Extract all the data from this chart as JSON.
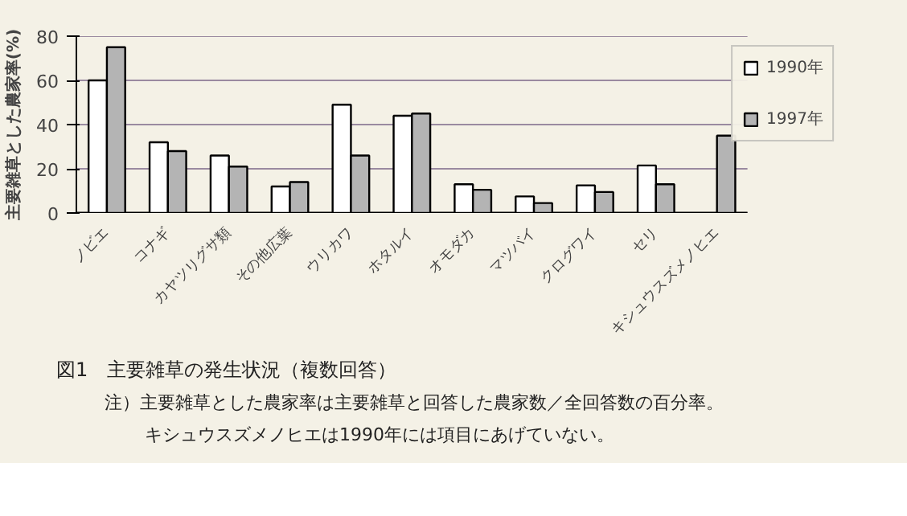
{
  "chart_data": {
    "type": "bar",
    "title": "図1　主要雑草の発生状況（複数回答）",
    "ylabel": "主要雑草とした農家率(%)",
    "categories": [
      "ノビエ",
      "コナギ",
      "カヤツリグサ類",
      "その他広葉",
      "ウリカワ",
      "ホタルイ",
      "オモダカ",
      "マツバイ",
      "クログワイ",
      "セリ",
      "キシュウスズメノヒエ"
    ],
    "series": [
      {
        "name": "1990年",
        "color": "#ffffff",
        "values": [
          60,
          32,
          26,
          12,
          49,
          44,
          13,
          7.5,
          12.5,
          21.5,
          null
        ]
      },
      {
        "name": "1997年",
        "color": "#b4b4b4",
        "values": [
          75,
          28,
          21,
          14,
          26,
          45,
          10.5,
          4.5,
          9.5,
          13,
          35
        ]
      }
    ],
    "ylim": [
      0,
      80
    ],
    "yticks": [
      0,
      20,
      40,
      60,
      80
    ],
    "grid": "y",
    "legend": "right",
    "annotations": [
      "注）主要雑草とした農家率は主要雑草と回答した農家数／全回答数の百分率。",
      "キシュウスズメノヒエは1990年には項目にあげていない。"
    ]
  }
}
